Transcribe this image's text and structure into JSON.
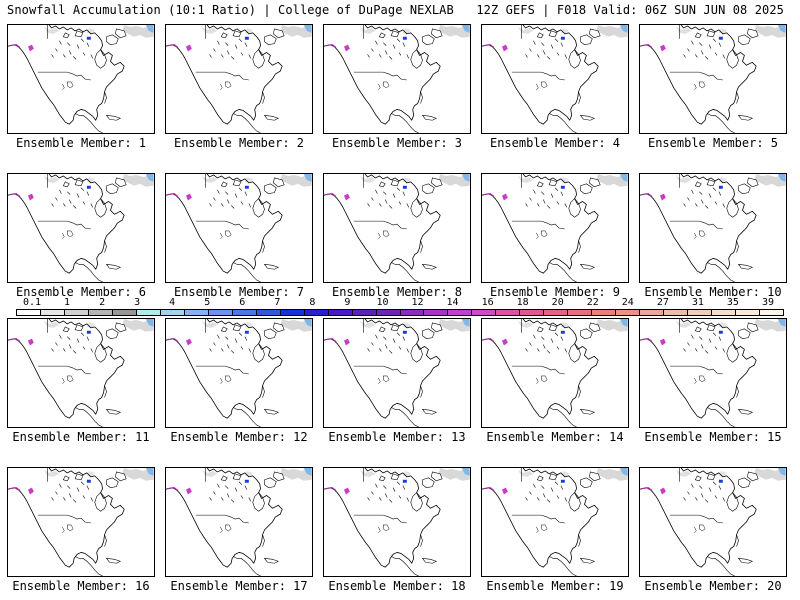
{
  "header": {
    "title": "Snowfall Accumulation (10:1 Ratio) | College of DuPage NEXLAB",
    "run_info": "12Z GEFS | F018 Valid: 06Z SUN JUN 08 2025"
  },
  "panels": [
    {
      "label": "Ensemble Member: 1"
    },
    {
      "label": "Ensemble Member: 2"
    },
    {
      "label": "Ensemble Member: 3"
    },
    {
      "label": "Ensemble Member: 4"
    },
    {
      "label": "Ensemble Member: 5"
    },
    {
      "label": "Ensemble Member: 6"
    },
    {
      "label": "Ensemble Member: 7"
    },
    {
      "label": "Ensemble Member: 8"
    },
    {
      "label": "Ensemble Member: 9"
    },
    {
      "label": "Ensemble Member: 10"
    },
    {
      "label": "Ensemble Member: 11"
    },
    {
      "label": "Ensemble Member: 12"
    },
    {
      "label": "Ensemble Member: 13"
    },
    {
      "label": "Ensemble Member: 14"
    },
    {
      "label": "Ensemble Member: 15"
    },
    {
      "label": "Ensemble Member: 16"
    },
    {
      "label": "Ensemble Member: 17"
    },
    {
      "label": "Ensemble Member: 18"
    },
    {
      "label": "Ensemble Member: 19"
    },
    {
      "label": "Ensemble Member: 20"
    }
  ],
  "legend": {
    "ticks": [
      "0.1",
      "1",
      "2",
      "3",
      "4",
      "5",
      "6",
      "7",
      "8",
      "9",
      "10",
      "12",
      "14",
      "16",
      "18",
      "20",
      "22",
      "24",
      "27",
      "31",
      "35",
      "39"
    ],
    "colors": [
      "#ffffff",
      "#e8e8e8",
      "#d0d0d0",
      "#b4b4b4",
      "#969696",
      "#b0ecec",
      "#a0d4f4",
      "#84b4f0",
      "#6a96ea",
      "#4c78e6",
      "#2e58e0",
      "#1232dc",
      "#2a1ed2",
      "#4a1ac8",
      "#5e20b8",
      "#7024b0",
      "#8a2cbc",
      "#a436c6",
      "#bc44cc",
      "#cc4cc4",
      "#d852ae",
      "#e05696",
      "#e2628a",
      "#e6707c",
      "#e88272",
      "#ea9482",
      "#eca894",
      "#f0bca4",
      "#f2ceb6",
      "#f6dec8",
      "#f9ead8",
      "#fdf5ea"
    ]
  }
}
